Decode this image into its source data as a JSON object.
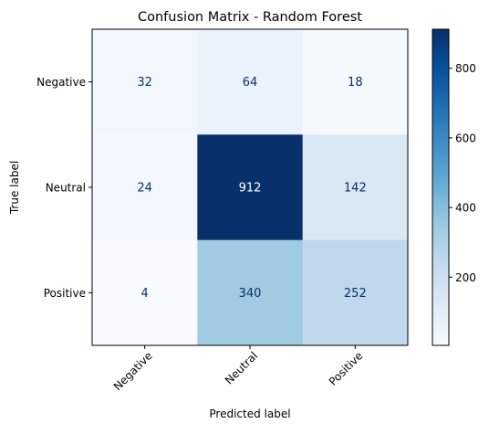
{
  "chart_data": {
    "type": "heatmap",
    "title": "Confusion Matrix - Random Forest",
    "xlabel": "Predicted label",
    "ylabel": "True label",
    "x_categories": [
      "Negative",
      "Neutral",
      "Positive"
    ],
    "y_categories": [
      "Negative",
      "Neutral",
      "Positive"
    ],
    "values": [
      [
        32,
        64,
        18
      ],
      [
        24,
        912,
        142
      ],
      [
        4,
        340,
        252
      ]
    ],
    "colormap": "Blues",
    "color_range": [
      4,
      912
    ],
    "colorbar_ticks": [
      200,
      400,
      600,
      800
    ],
    "x_tick_rotation_deg": 45,
    "grid": false,
    "legend": "colorbar-right"
  }
}
